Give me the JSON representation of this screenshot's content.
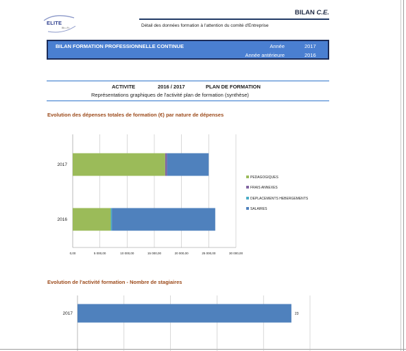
{
  "logo": {
    "text": "ELITE",
    "sub": "Rh • Fr"
  },
  "header": {
    "title_main": "BILAN",
    "title_it": "C.E.",
    "subtitle": "Détail des données formation à l'attention du comité d'Entreprise"
  },
  "banner": {
    "title": "BILAN FORMATION PROFESSIONNELLE CONTINUE",
    "year_label": "Année",
    "year_value": "2017",
    "prev_label": "Année antérieure",
    "prev_value": "2016"
  },
  "activity": {
    "left": "ACTIVITE",
    "years": "2016  /  2017",
    "right": "PLAN DE FORMATION",
    "subtitle": "Représentations graphiques de l'activité plan de formation (synthèse)"
  },
  "colors": {
    "pedagogiques": "#9bbb59",
    "frais_annexes": "#8064a2",
    "deplacements": "#4bacc6",
    "salaires": "#4f81bd",
    "stagiaires": "#4f81bd"
  },
  "chart_data": [
    {
      "type": "bar",
      "orientation": "horizontal",
      "stacked": true,
      "title": "Evolution des dépenses totales de formation (€) par nature de dépenses",
      "categories": [
        "2017",
        "2016"
      ],
      "series": [
        {
          "name": "PEDAGOGIQUES",
          "color": "#9bbb59",
          "values": [
            17000,
            7000
          ]
        },
        {
          "name": "FRAIS  ANNEXES",
          "color": "#8064a2",
          "values": [
            350,
            0
          ]
        },
        {
          "name": "DEPLACEMENTS HEBERGEMENTS",
          "color": "#4bacc6",
          "values": [
            0,
            200
          ]
        },
        {
          "name": "SALAIRES",
          "color": "#4f81bd",
          "values": [
            7650,
            19000
          ]
        }
      ],
      "xlim": [
        0,
        30000
      ],
      "xticks": [
        "0,00",
        "5 000,00",
        "10 000,00",
        "15 000,00",
        "20 000,00",
        "25 000,00",
        "30 000,00"
      ],
      "grid": true,
      "legend": "right"
    },
    {
      "type": "bar",
      "orientation": "horizontal",
      "title": "Evolution de l'activité formation - Nombre de stagiaires",
      "categories": [
        "2017"
      ],
      "values": [
        23
      ],
      "data_labels": [
        "23"
      ],
      "xlim": [
        0,
        25
      ],
      "grid": true
    }
  ]
}
